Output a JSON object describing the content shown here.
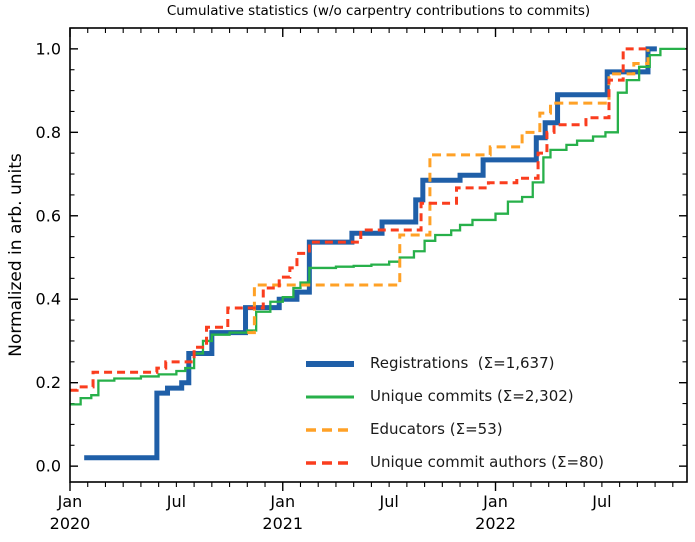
{
  "title": "Cumulative statistics (w/o carpentry contributions to commits)",
  "chart_data": {
    "type": "line",
    "subtype": "cumulative-step",
    "title": "Cumulative statistics (w/o carpentry contributions to commits)",
    "xlabel": "",
    "ylabel": "Normalized in arb. units",
    "x_unit": "months since 2020-01",
    "xlim": [
      0,
      34.8
    ],
    "ylim": [
      -0.038,
      1.05
    ],
    "grid": false,
    "legend_position": "lower-right-inside",
    "x_ticks": [
      {
        "m": 0,
        "label": "Jan",
        "year": "2020"
      },
      {
        "m": 6,
        "label": "Jul",
        "year": ""
      },
      {
        "m": 12,
        "label": "Jan",
        "year": "2021"
      },
      {
        "m": 18,
        "label": "Jul",
        "year": ""
      },
      {
        "m": 24,
        "label": "Jan",
        "year": "2022"
      },
      {
        "m": 30,
        "label": "Jul",
        "year": ""
      }
    ],
    "y_ticks": [
      {
        "v": 0.0,
        "label": "0.0"
      },
      {
        "v": 0.2,
        "label": "0.2"
      },
      {
        "v": 0.4,
        "label": "0.4"
      },
      {
        "v": 0.6,
        "label": "0.6"
      },
      {
        "v": 0.8,
        "label": "0.8"
      },
      {
        "v": 1.0,
        "label": "1.0"
      }
    ],
    "y_minor_step": 0.05,
    "x_minor_step_months": 1,
    "series": [
      {
        "name": "registrations",
        "label": "Registrations  (Σ=1,637)",
        "total": 1637,
        "color": "#1f5fa8",
        "width": 5,
        "dash": null,
        "points": [
          [
            0.8,
            0.02
          ],
          [
            4.9,
            0.175
          ],
          [
            5.5,
            0.187
          ],
          [
            6.3,
            0.2
          ],
          [
            6.7,
            0.27
          ],
          [
            8.0,
            0.32
          ],
          [
            9.9,
            0.38
          ],
          [
            11.8,
            0.4
          ],
          [
            12.8,
            0.417
          ],
          [
            13.5,
            0.537
          ],
          [
            15.9,
            0.558
          ],
          [
            17.6,
            0.585
          ],
          [
            19.5,
            0.638
          ],
          [
            19.9,
            0.685
          ],
          [
            22.0,
            0.697
          ],
          [
            23.3,
            0.734
          ],
          [
            26.3,
            0.787
          ],
          [
            26.8,
            0.823
          ],
          [
            27.5,
            0.89
          ],
          [
            30.3,
            0.945
          ],
          [
            32.6,
            1.0
          ],
          [
            33.1,
            1.0
          ]
        ]
      },
      {
        "name": "unique_commits",
        "label": "Unique commits (Σ=2,302)",
        "total": 2302,
        "color": "#27b04a",
        "width": 2.3,
        "dash": null,
        "points": [
          [
            0,
            0.148
          ],
          [
            0.6,
            0.163
          ],
          [
            1.2,
            0.17
          ],
          [
            1.6,
            0.205
          ],
          [
            2.5,
            0.21
          ],
          [
            4,
            0.215
          ],
          [
            5,
            0.22
          ],
          [
            6,
            0.228
          ],
          [
            6.5,
            0.235
          ],
          [
            7,
            0.27
          ],
          [
            7.5,
            0.3
          ],
          [
            8,
            0.315
          ],
          [
            9,
            0.32
          ],
          [
            10,
            0.325
          ],
          [
            10.5,
            0.37
          ],
          [
            11.3,
            0.394
          ],
          [
            12,
            0.405
          ],
          [
            12.6,
            0.427
          ],
          [
            13,
            0.44
          ],
          [
            13.5,
            0.475
          ],
          [
            15,
            0.478
          ],
          [
            16,
            0.48
          ],
          [
            17,
            0.483
          ],
          [
            18,
            0.49
          ],
          [
            18.6,
            0.5
          ],
          [
            19.4,
            0.515
          ],
          [
            20,
            0.54
          ],
          [
            20.6,
            0.554
          ],
          [
            21.5,
            0.565
          ],
          [
            22,
            0.578
          ],
          [
            22.7,
            0.59
          ],
          [
            24,
            0.605
          ],
          [
            24.7,
            0.634
          ],
          [
            25.5,
            0.645
          ],
          [
            26.1,
            0.68
          ],
          [
            26.7,
            0.74
          ],
          [
            27.1,
            0.758
          ],
          [
            28,
            0.77
          ],
          [
            28.6,
            0.78
          ],
          [
            29.5,
            0.79
          ],
          [
            30.2,
            0.8
          ],
          [
            30.9,
            0.895
          ],
          [
            31.4,
            0.925
          ],
          [
            32.1,
            0.957
          ],
          [
            32.7,
            0.985
          ],
          [
            33.3,
            1.0
          ],
          [
            34.7,
            1.0
          ]
        ]
      },
      {
        "name": "educators",
        "label": "Educators (Σ=53)",
        "total": 53,
        "color": "#ffa126",
        "width": 3,
        "dash": [
          9,
          5.5
        ],
        "points": [
          [
            10.0,
            0.32
          ],
          [
            10.4,
            0.434
          ],
          [
            18.5,
            0.434
          ],
          [
            18.6,
            0.554
          ],
          [
            20.2,
            0.554
          ],
          [
            20.3,
            0.746
          ],
          [
            23.7,
            0.765
          ],
          [
            25.5,
            0.8
          ],
          [
            26.5,
            0.846
          ],
          [
            27.1,
            0.87
          ],
          [
            30.2,
            0.87
          ],
          [
            30.4,
            0.94
          ],
          [
            31.3,
            0.94
          ],
          [
            31.8,
            0.965
          ],
          [
            32.6,
            1.0
          ]
        ]
      },
      {
        "name": "unique_commit_authors",
        "label": "Unique commit authors (Σ=80)",
        "total": 80,
        "color": "#fa3d1e",
        "width": 3,
        "dash": [
          8,
          5
        ],
        "points": [
          [
            0,
            0.182
          ],
          [
            0.4,
            0.19
          ],
          [
            1.3,
            0.225
          ],
          [
            4.9,
            0.235
          ],
          [
            5.4,
            0.25
          ],
          [
            7.0,
            0.285
          ],
          [
            7.7,
            0.333
          ],
          [
            8.9,
            0.379
          ],
          [
            10.9,
            0.427
          ],
          [
            11.8,
            0.453
          ],
          [
            12.4,
            0.475
          ],
          [
            12.8,
            0.51
          ],
          [
            13.5,
            0.537
          ],
          [
            16.4,
            0.566
          ],
          [
            19.8,
            0.63
          ],
          [
            21.8,
            0.667
          ],
          [
            23.6,
            0.679
          ],
          [
            25.2,
            0.69
          ],
          [
            26.4,
            0.75
          ],
          [
            26.9,
            0.8
          ],
          [
            27.3,
            0.818
          ],
          [
            29.1,
            0.835
          ],
          [
            30.4,
            0.925
          ],
          [
            31.2,
            1.0
          ],
          [
            32.5,
            1.0
          ]
        ]
      }
    ]
  }
}
